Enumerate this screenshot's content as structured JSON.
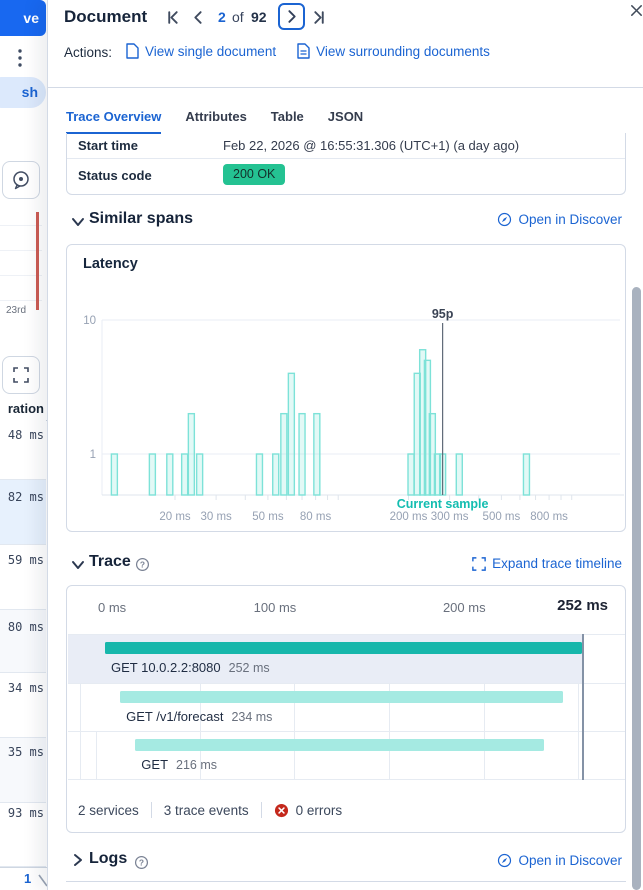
{
  "background_page": {
    "save_button_fragment": "ve",
    "refresh_button_fragment": "sh",
    "date_label_fragment": "23rd",
    "duration_column_fragment": "ration",
    "duration_rows": [
      {
        "value": "48 ms",
        "state": "plain"
      },
      {
        "value": "82 ms",
        "state": "selected"
      },
      {
        "value": "59 ms",
        "state": "plain"
      },
      {
        "value": "80 ms",
        "state": "striped"
      },
      {
        "value": "34 ms",
        "state": "plain"
      },
      {
        "value": "35 ms",
        "state": "striped"
      },
      {
        "value": "93 ms",
        "state": "plain"
      }
    ],
    "page_number": "1"
  },
  "flyout": {
    "title": "Document",
    "pagination": {
      "current": "2",
      "of_label": "of",
      "total": "92"
    },
    "actions_label": "Actions:",
    "actions": [
      {
        "label": "View single document",
        "icon": "document-icon"
      },
      {
        "label": "View surrounding documents",
        "icon": "documents-icon"
      }
    ],
    "tabs": [
      {
        "label": "Trace Overview",
        "active": true
      },
      {
        "label": "Attributes",
        "active": false
      },
      {
        "label": "Table",
        "active": false
      },
      {
        "label": "JSON",
        "active": false
      }
    ],
    "overview_table": {
      "rows": [
        {
          "label": "Start time",
          "value": "Feb 22, 2026 @ 16:55:31.306 (UTC+1) (a day ago)",
          "type": "text"
        },
        {
          "label": "Status code",
          "value": "200 OK",
          "type": "badge",
          "badge_color": "#24c292"
        }
      ]
    },
    "similar_spans": {
      "title": "Similar spans",
      "link": "Open in Discover",
      "chart_title": "Latency"
    },
    "trace": {
      "title": "Trace",
      "link": "Expand trace timeline",
      "footer": {
        "services": "2 services",
        "events": "3 trace events",
        "errors": "0 errors"
      }
    },
    "logs": {
      "title": "Logs",
      "link": "Open in Discover"
    }
  },
  "chart_data": [
    {
      "type": "bar",
      "title": "Latency",
      "x_scale": "log",
      "y_scale": "log",
      "x_unit": "ms",
      "x_ticks": [
        {
          "ms": 20,
          "label": "20 ms"
        },
        {
          "ms": 30,
          "label": "30 ms"
        },
        {
          "ms": 50,
          "label": "50 ms"
        },
        {
          "ms": 80,
          "label": "80 ms"
        },
        {
          "ms": 200,
          "label": "200 ms"
        },
        {
          "ms": 300,
          "label": "300 ms"
        },
        {
          "ms": 500,
          "label": "500 ms"
        },
        {
          "ms": 800,
          "label": "800 ms"
        }
      ],
      "y_ticks": [
        {
          "v": 1,
          "label": "1"
        },
        {
          "v": 10,
          "label": "10"
        }
      ],
      "bars": [
        {
          "ms": 11,
          "count": 1
        },
        {
          "ms": 16,
          "count": 1
        },
        {
          "ms": 19,
          "count": 1
        },
        {
          "ms": 22,
          "count": 1
        },
        {
          "ms": 23.5,
          "count": 2
        },
        {
          "ms": 25.5,
          "count": 1
        },
        {
          "ms": 46,
          "count": 1
        },
        {
          "ms": 54,
          "count": 1
        },
        {
          "ms": 58.5,
          "count": 2
        },
        {
          "ms": 63,
          "count": 4
        },
        {
          "ms": 70,
          "count": 2
        },
        {
          "ms": 81,
          "count": 2
        },
        {
          "ms": 205,
          "count": 1
        },
        {
          "ms": 218,
          "count": 4
        },
        {
          "ms": 230,
          "count": 6
        },
        {
          "ms": 241,
          "count": 5
        },
        {
          "ms": 253,
          "count": 2
        },
        {
          "ms": 266,
          "count": 1
        },
        {
          "ms": 280,
          "count": 1
        },
        {
          "ms": 330,
          "count": 1
        },
        {
          "ms": 640,
          "count": 1
        }
      ],
      "annotation": {
        "top_label": "95p",
        "bottom_label": "Current sample",
        "ms": 280
      }
    },
    {
      "type": "waterfall",
      "end_ms": 252,
      "gridline_ms": [
        50,
        100,
        150,
        200,
        250
      ],
      "ticks": [
        {
          "label": "0 ms",
          "ms": 0,
          "align": "left",
          "strong": false
        },
        {
          "label": "100 ms",
          "ms": 100,
          "align": "right",
          "strong": false
        },
        {
          "label": "200 ms",
          "ms": 200,
          "align": "right",
          "strong": false
        },
        {
          "label": "252 ms",
          "ms": 252,
          "align": "right",
          "strong": true
        }
      ],
      "spans": [
        {
          "name": "GET 10.0.2.2:8080",
          "duration_label": "252 ms",
          "start_ms": 0,
          "duration_ms": 252,
          "depth": 0,
          "highlighted": true,
          "shade": "dark"
        },
        {
          "name": "GET /v1/forecast",
          "duration_label": "234 ms",
          "start_ms": 8,
          "duration_ms": 234,
          "depth": 1,
          "highlighted": false,
          "shade": "light"
        },
        {
          "name": "GET",
          "duration_label": "216 ms",
          "start_ms": 16,
          "duration_ms": 216,
          "depth": 2,
          "highlighted": false,
          "shade": "light"
        }
      ]
    }
  ],
  "colors": {
    "link_blue": "#1b64d2",
    "primary_button": "#1868f0",
    "badge_green": "#24c292",
    "error_red": "#c4281c",
    "teal_dark": "#17b7ab",
    "teal_light": "#a5eae2",
    "teal_text": "#13bdb0",
    "bar_stroke": "#7de2d8",
    "highlight_row": "#e9edf6"
  }
}
